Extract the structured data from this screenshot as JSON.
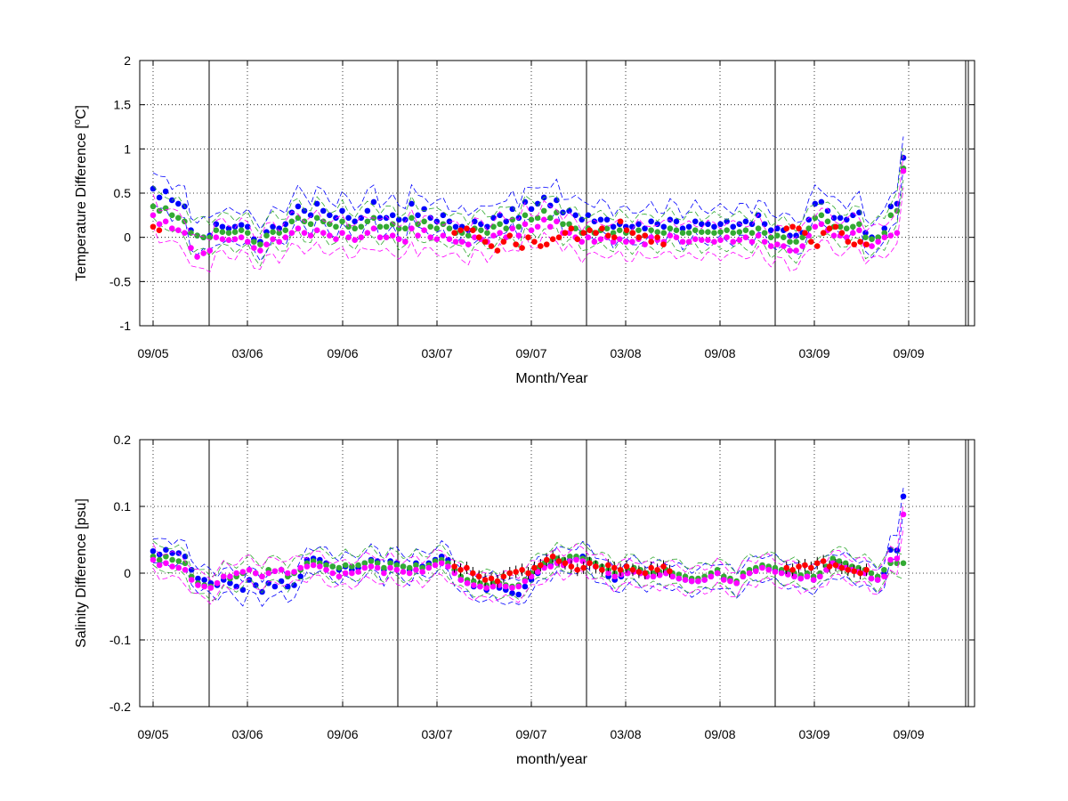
{
  "chart_data": [
    {
      "type": "scatter",
      "title": "",
      "xlabel": "Month/Year",
      "ylabel": "Temperature Difference [",
      "ylabel_sup": "o",
      "ylabel_end": "C]",
      "xlim": [
        "2005-08",
        "2009-12"
      ],
      "ylim": [
        -1,
        2
      ],
      "yticks": [
        -1,
        -0.5,
        0,
        0.5,
        1,
        1.5,
        2
      ],
      "ytick_labels": [
        "-1",
        "-0.5",
        "0",
        "0.5",
        "1",
        "1.5",
        "2"
      ],
      "xtick_labels": [
        "09/05",
        "03/06",
        "09/06",
        "03/07",
        "09/07",
        "03/08",
        "09/08",
        "03/09",
        "09/09"
      ],
      "grid": true,
      "series": [
        {
          "color": "#0000ff",
          "values": [
            0.55,
            0.45,
            0.52,
            0.42,
            0.38,
            0.35,
            0.08,
            0.02,
            0.0,
            0.02,
            0.15,
            0.12,
            0.1,
            0.12,
            0.14,
            0.12,
            -0.02,
            -0.05,
            0.06,
            0.12,
            0.1,
            0.15,
            0.28,
            0.35,
            0.3,
            0.25,
            0.38,
            0.3,
            0.25,
            0.22,
            0.3,
            0.22,
            0.18,
            0.22,
            0.3,
            0.4,
            0.22,
            0.22,
            0.25,
            0.2,
            0.2,
            0.38,
            0.25,
            0.32,
            0.22,
            0.18,
            0.25,
            0.18,
            0.12,
            0.12,
            0.08,
            0.18,
            0.15,
            0.12,
            0.22,
            0.25,
            0.18,
            0.32,
            0.22,
            0.4,
            0.32,
            0.38,
            0.45,
            0.36,
            0.42,
            0.28,
            0.3,
            0.25,
            0.2,
            0.25,
            0.18,
            0.2,
            0.2,
            0.12,
            0.15,
            0.12,
            0.12,
            0.15,
            0.1,
            0.18,
            0.15,
            0.12,
            0.2,
            0.18,
            0.1,
            0.12,
            0.18,
            0.15,
            0.15,
            0.12,
            0.15,
            0.18,
            0.12,
            0.15,
            0.18,
            0.15,
            0.25,
            0.15,
            0.08,
            0.1,
            0.08,
            0.02,
            0.02,
            0.05,
            0.2,
            0.38,
            0.4,
            0.3,
            0.22,
            0.22,
            0.2,
            0.25,
            0.28,
            0.05,
            0.0,
            0.0,
            0.1,
            0.35,
            0.38,
            0.9
          ]
        },
        {
          "color": "#33aa33",
          "values": [
            0.35,
            0.3,
            0.33,
            0.25,
            0.22,
            0.18,
            0.05,
            0.02,
            0.0,
            0.0,
            0.08,
            0.06,
            0.05,
            0.06,
            0.08,
            0.05,
            -0.05,
            -0.08,
            0.02,
            0.06,
            0.05,
            0.08,
            0.18,
            0.22,
            0.18,
            0.15,
            0.22,
            0.18,
            0.15,
            0.12,
            0.18,
            0.12,
            0.1,
            0.12,
            0.18,
            0.22,
            0.12,
            0.12,
            0.15,
            0.1,
            0.1,
            0.22,
            0.15,
            0.18,
            0.12,
            0.1,
            0.15,
            0.1,
            0.05,
            0.05,
            0.02,
            0.1,
            0.08,
            0.05,
            0.12,
            0.15,
            0.1,
            0.2,
            0.12,
            0.25,
            0.2,
            0.22,
            0.3,
            0.22,
            0.28,
            0.15,
            0.15,
            0.1,
            0.05,
            0.1,
            0.05,
            0.08,
            0.1,
            0.05,
            0.08,
            0.05,
            0.05,
            0.08,
            0.02,
            0.08,
            0.06,
            0.05,
            0.1,
            0.08,
            0.05,
            0.05,
            0.08,
            0.06,
            0.06,
            0.05,
            0.06,
            0.08,
            0.05,
            0.06,
            0.08,
            0.05,
            0.1,
            0.05,
            0.0,
            0.02,
            0.0,
            -0.05,
            -0.05,
            0.0,
            0.1,
            0.22,
            0.25,
            0.18,
            0.12,
            0.12,
            0.1,
            0.12,
            0.15,
            0.0,
            -0.02,
            0.0,
            0.05,
            0.25,
            0.3,
            0.78
          ]
        },
        {
          "color": "#ff00ff",
          "values": [
            0.25,
            0.15,
            0.18,
            0.1,
            0.08,
            0.05,
            -0.12,
            -0.22,
            -0.18,
            -0.15,
            0.0,
            -0.02,
            -0.03,
            -0.02,
            0.0,
            -0.05,
            -0.12,
            -0.15,
            -0.08,
            -0.02,
            -0.05,
            0.0,
            0.05,
            0.1,
            0.05,
            0.02,
            0.08,
            0.05,
            0.02,
            -0.02,
            0.05,
            0.0,
            -0.03,
            0.0,
            0.05,
            0.1,
            0.0,
            0.0,
            0.02,
            -0.02,
            -0.05,
            0.1,
            0.02,
            0.08,
            0.0,
            -0.02,
            0.02,
            -0.02,
            -0.05,
            -0.05,
            -0.08,
            0.0,
            -0.02,
            -0.05,
            0.02,
            0.05,
            0.0,
            0.1,
            0.02,
            0.15,
            0.08,
            0.12,
            0.2,
            0.12,
            0.18,
            0.05,
            0.05,
            0.0,
            -0.05,
            0.0,
            -0.05,
            -0.02,
            0.0,
            -0.05,
            -0.02,
            -0.05,
            -0.05,
            -0.02,
            -0.08,
            0.0,
            -0.03,
            -0.05,
            0.02,
            0.0,
            -0.05,
            -0.05,
            -0.02,
            -0.03,
            -0.03,
            -0.05,
            -0.03,
            0.0,
            -0.05,
            -0.03,
            0.0,
            -0.05,
            0.02,
            -0.05,
            -0.1,
            -0.08,
            -0.1,
            -0.15,
            -0.15,
            -0.1,
            0.02,
            0.12,
            0.15,
            0.08,
            0.02,
            0.02,
            0.0,
            0.05,
            0.08,
            -0.08,
            -0.1,
            -0.05,
            0.0,
            0.02,
            0.05,
            0.75
          ]
        },
        {
          "color": "#ff0000",
          "values": [
            0.12,
            0.08,
            null,
            null,
            null,
            null,
            null,
            null,
            null,
            null,
            null,
            null,
            null,
            null,
            null,
            null,
            null,
            null,
            null,
            null,
            null,
            null,
            null,
            null,
            null,
            null,
            null,
            null,
            null,
            null,
            null,
            null,
            null,
            null,
            null,
            null,
            null,
            null,
            null,
            null,
            null,
            null,
            null,
            null,
            null,
            null,
            null,
            null,
            null,
            0.05,
            0.08,
            0.1,
            0.08,
            0.0,
            -0.05,
            -0.1,
            -0.15,
            -0.05,
            0.02,
            -0.08,
            -0.12,
            0.0,
            -0.05,
            -0.1,
            -0.08,
            -0.02,
            0.0,
            0.05,
            0.1,
            -0.02,
            0.05,
            0.08,
            0.05,
            0.1,
            0.02,
            0.0,
            0.18,
            0.08,
            0.05,
            0.0,
            0.02,
            -0.05,
            0.0,
            -0.08,
            null,
            null,
            null,
            null,
            null,
            null,
            null,
            null,
            null,
            null,
            null,
            null,
            null,
            null,
            null,
            null,
            null,
            null,
            null,
            0.1,
            0.12,
            0.1,
            0.05,
            -0.05,
            -0.1,
            0.05,
            0.1,
            0.12,
            0.05,
            -0.05,
            -0.08,
            -0.05,
            -0.08,
            null,
            null,
            null,
            null,
            null,
            null
          ]
        }
      ]
    },
    {
      "type": "scatter",
      "title": "",
      "xlabel": "month/year",
      "ylabel": "Salinity Difference [psu]",
      "xlim": [
        "2005-08",
        "2009-12"
      ],
      "ylim": [
        -0.2,
        0.2
      ],
      "yticks": [
        -0.2,
        -0.1,
        0,
        0.1,
        0.2
      ],
      "ytick_labels": [
        "-0.2",
        "-0.1",
        "0",
        "0.1",
        "0.2"
      ],
      "xtick_labels": [
        "09/05",
        "03/06",
        "09/06",
        "03/07",
        "09/07",
        "03/08",
        "09/08",
        "03/09",
        "09/09"
      ],
      "grid": true,
      "series": [
        {
          "color": "#0000ff",
          "values": [
            0.033,
            0.028,
            0.035,
            0.03,
            0.03,
            0.025,
            0.005,
            -0.008,
            -0.01,
            -0.015,
            -0.018,
            -0.01,
            -0.015,
            -0.02,
            -0.025,
            -0.01,
            -0.018,
            -0.028,
            -0.015,
            -0.02,
            -0.012,
            -0.02,
            -0.018,
            -0.005,
            0.02,
            0.022,
            0.02,
            0.015,
            0.01,
            0.005,
            0.01,
            0.005,
            0.008,
            0.015,
            0.02,
            0.018,
            0.005,
            0.018,
            0.015,
            0.01,
            0.005,
            0.015,
            0.01,
            0.015,
            0.02,
            0.025,
            0.02,
            0.005,
            -0.01,
            -0.015,
            -0.02,
            -0.02,
            -0.025,
            -0.02,
            -0.022,
            -0.025,
            -0.03,
            -0.032,
            -0.02,
            -0.01,
            0.0,
            0.01,
            0.012,
            0.02,
            0.015,
            0.02,
            0.022,
            0.025,
            0.02,
            0.01,
            0.005,
            -0.005,
            -0.01,
            -0.005,
            0.0,
            0.003,
            0.0,
            -0.005,
            -0.005,
            -0.002,
            0.0,
            -0.005,
            -0.008,
            -0.01,
            -0.012,
            -0.012,
            -0.01,
            -0.005,
            0.0,
            -0.008,
            -0.01,
            -0.015,
            -0.005,
            0.0,
            0.005,
            0.01,
            0.008,
            0.005,
            0.002,
            0.0,
            -0.005,
            -0.008,
            -0.005,
            -0.01,
            -0.005,
            0.005,
            0.015,
            0.01,
            0.008,
            0.005,
            0.003,
            0.0,
            -0.008,
            -0.01,
            0.0,
            0.035,
            0.034,
            0.115
          ]
        },
        {
          "color": "#33aa33",
          "values": [
            0.025,
            0.02,
            0.025,
            0.02,
            0.018,
            0.015,
            -0.005,
            -0.015,
            -0.018,
            -0.02,
            -0.015,
            -0.005,
            -0.008,
            -0.005,
            0.0,
            0.005,
            0.0,
            -0.005,
            0.005,
            0.003,
            0.005,
            -0.005,
            0.0,
            0.005,
            0.015,
            0.018,
            0.015,
            0.012,
            0.01,
            0.008,
            0.012,
            0.01,
            0.012,
            0.015,
            0.018,
            0.015,
            0.008,
            0.015,
            0.012,
            0.01,
            0.008,
            0.012,
            0.008,
            0.012,
            0.018,
            0.02,
            0.015,
            0.005,
            -0.005,
            -0.01,
            -0.012,
            -0.015,
            -0.018,
            -0.015,
            -0.015,
            -0.018,
            -0.02,
            -0.018,
            -0.01,
            0.0,
            0.008,
            0.015,
            0.018,
            0.022,
            0.02,
            0.025,
            0.025,
            0.022,
            0.02,
            0.015,
            0.01,
            0.005,
            0.0,
            0.003,
            0.005,
            0.008,
            0.005,
            0.0,
            0.0,
            0.002,
            0.005,
            0.0,
            -0.002,
            -0.005,
            -0.008,
            -0.008,
            -0.005,
            0.0,
            0.005,
            -0.005,
            -0.008,
            -0.012,
            0.0,
            0.005,
            0.008,
            0.012,
            0.01,
            0.008,
            0.005,
            0.003,
            0.0,
            -0.003,
            0.0,
            -0.005,
            0.0,
            0.01,
            0.022,
            0.018,
            0.015,
            0.01,
            0.008,
            0.005,
            0.0,
            -0.005,
            0.005,
            0.015,
            0.015,
            0.015
          ]
        },
        {
          "color": "#ff00ff",
          "values": [
            0.02,
            0.012,
            0.015,
            0.01,
            0.008,
            0.005,
            -0.01,
            -0.018,
            -0.02,
            -0.022,
            -0.015,
            -0.005,
            -0.005,
            0.0,
            0.002,
            0.005,
            0.0,
            -0.005,
            0.0,
            0.003,
            0.005,
            0.0,
            0.002,
            0.008,
            0.01,
            0.012,
            0.01,
            0.005,
            0.0,
            -0.005,
            0.0,
            0.0,
            0.002,
            0.008,
            0.01,
            0.008,
            0.0,
            0.008,
            0.005,
            0.002,
            0.0,
            0.005,
            0.002,
            0.008,
            0.012,
            0.015,
            0.01,
            0.0,
            -0.01,
            -0.015,
            -0.018,
            -0.02,
            -0.022,
            -0.02,
            -0.018,
            -0.02,
            -0.022,
            -0.02,
            -0.012,
            -0.005,
            0.002,
            0.008,
            0.01,
            0.015,
            0.012,
            0.018,
            0.02,
            0.018,
            0.015,
            0.01,
            0.005,
            0.0,
            -0.005,
            -0.002,
            0.0,
            0.002,
            0.0,
            -0.005,
            -0.005,
            -0.003,
            0.0,
            -0.005,
            -0.008,
            -0.01,
            -0.012,
            -0.012,
            -0.01,
            -0.005,
            0.0,
            -0.01,
            -0.012,
            -0.015,
            -0.005,
            0.0,
            0.003,
            0.008,
            0.005,
            0.002,
            0.0,
            -0.002,
            -0.005,
            -0.008,
            -0.005,
            -0.01,
            -0.005,
            0.005,
            0.015,
            0.01,
            0.008,
            0.005,
            0.002,
            0.0,
            -0.008,
            -0.01,
            -0.005,
            0.02,
            0.022,
            0.088
          ]
        },
        {
          "color": "#ff0000",
          "values": [
            null,
            null,
            null,
            null,
            null,
            null,
            null,
            null,
            null,
            null,
            null,
            null,
            null,
            null,
            null,
            null,
            null,
            null,
            null,
            null,
            null,
            null,
            null,
            null,
            null,
            null,
            null,
            null,
            null,
            null,
            null,
            null,
            null,
            null,
            null,
            null,
            null,
            null,
            null,
            null,
            null,
            null,
            null,
            null,
            null,
            null,
            null,
            null,
            null,
            0.01,
            0.005,
            0.008,
            0.0,
            -0.005,
            -0.01,
            -0.008,
            -0.012,
            -0.005,
            0.0,
            0.002,
            0.005,
            0.0,
            0.008,
            0.012,
            0.02,
            0.025,
            0.018,
            0.015,
            0.01,
            0.005,
            0.008,
            0.015,
            0.01,
            0.005,
            0.012,
            0.008,
            0.005,
            0.01,
            0.005,
            0.002,
            0.0,
            0.008,
            0.005,
            0.01,
            0.003,
            null,
            null,
            null,
            null,
            null,
            null,
            null,
            null,
            null,
            null,
            null,
            null,
            null,
            null,
            null,
            null,
            null,
            null,
            0.008,
            0.005,
            0.01,
            0.012,
            0.008,
            0.015,
            0.018,
            0.01,
            0.012,
            0.008,
            0.005,
            0.003,
            0.0,
            0.005,
            null,
            null,
            null,
            null,
            null,
            null
          ]
        }
      ]
    }
  ]
}
